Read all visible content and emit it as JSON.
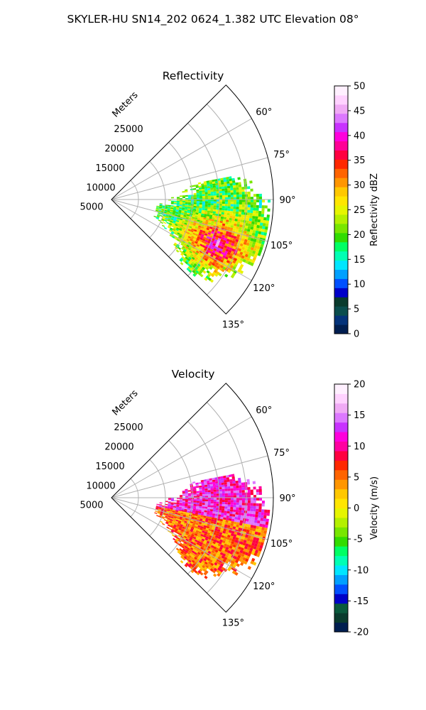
{
  "suptitle": "SKYLER-HU  SN14_202  0624_1.382 UTC Elevation 08°",
  "chart_data": [
    {
      "type": "heatmap",
      "title": "Reflectivity",
      "radial_axis_label": "Meters",
      "radial_ticks": [
        5000,
        10000,
        15000,
        20000,
        25000
      ],
      "radial_range": [
        0,
        30000
      ],
      "angle_ticks": [
        "60°",
        "75°",
        "90°",
        "105°",
        "120°",
        "135°"
      ],
      "angle_range_deg": [
        45,
        135
      ],
      "grid": true,
      "colorbar": {
        "label": "Reflectivity dBZ",
        "range": [
          0,
          50
        ],
        "ticks": [
          0,
          5,
          10,
          15,
          20,
          25,
          30,
          35,
          40,
          45,
          50
        ]
      }
    },
    {
      "type": "heatmap",
      "title": "Velocity",
      "radial_axis_label": "Meters",
      "radial_ticks": [
        5000,
        10000,
        15000,
        20000,
        25000
      ],
      "radial_range": [
        0,
        30000
      ],
      "angle_ticks": [
        "60°",
        "75°",
        "90°",
        "105°",
        "120°",
        "135°"
      ],
      "angle_range_deg": [
        45,
        135
      ],
      "grid": true,
      "colorbar": {
        "label": "Velocity (m/s)",
        "range": [
          -20,
          20
        ],
        "ticks": [
          -20,
          -15,
          -10,
          -5,
          0,
          5,
          10,
          15,
          20
        ]
      }
    }
  ],
  "colors": {
    "reflectivity_scale": [
      "#001e50",
      "#04337a",
      "#0a4d4d",
      "#0a3b2d",
      "#0000c8",
      "#0050ff",
      "#00a0ff",
      "#00e6ff",
      "#00ffb4",
      "#00ff64",
      "#32dc00",
      "#78e600",
      "#b4f000",
      "#e6f500",
      "#ffe600",
      "#ffc800",
      "#ff9600",
      "#ff6400",
      "#ff2800",
      "#ff0040",
      "#ff0096",
      "#ff00dc",
      "#c832ff",
      "#dc78ff",
      "#f0aaf5",
      "#ffd2ff",
      "#fff0ff"
    ],
    "velocity_scale": [
      "#001e50",
      "#0a3b2d",
      "#0a5a3c",
      "#0000c8",
      "#0050ff",
      "#00a0ff",
      "#00e6ff",
      "#00ffb4",
      "#00ff64",
      "#32dc00",
      "#78e600",
      "#b4f000",
      "#e6f500",
      "#ffe600",
      "#ffc800",
      "#ff9600",
      "#ff6400",
      "#ff2800",
      "#ff0040",
      "#ff00a0",
      "#ff00dc",
      "#c832ff",
      "#dc78ff",
      "#f0aaf5",
      "#ffd2ff",
      "#fff0ff"
    ]
  }
}
